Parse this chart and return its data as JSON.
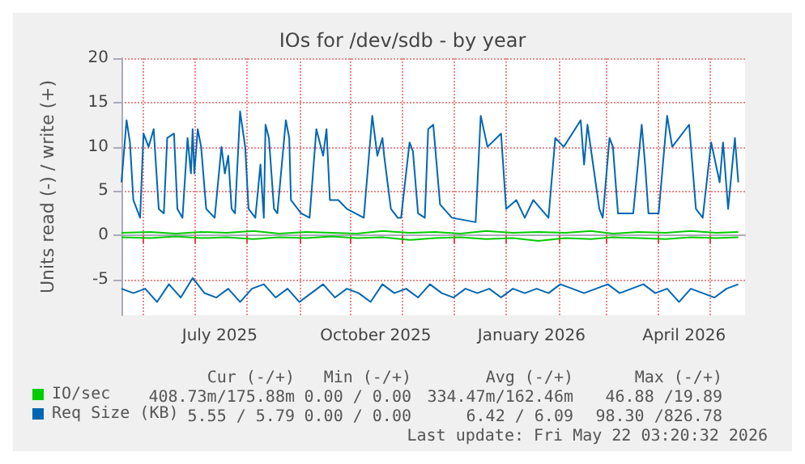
{
  "chart_data": {
    "type": "line",
    "title": "IOs for /dev/sdb - by year",
    "ylabel": "Units read (-) / write (+)",
    "xlim": [
      "2025-05-19",
      "2026-05-22"
    ],
    "xticks": [
      {
        "value": "2025-06-01",
        "label": null
      },
      {
        "value": "2025-07-01",
        "label": null
      },
      {
        "value": "2025-07-16",
        "label": "July 2025"
      },
      {
        "value": "2025-08-01",
        "label": null
      },
      {
        "value": "2025-09-01",
        "label": null
      },
      {
        "value": "2025-10-01",
        "label": null
      },
      {
        "value": "2025-10-16",
        "label": "October 2025"
      },
      {
        "value": "2025-11-01",
        "label": null
      },
      {
        "value": "2025-12-01",
        "label": null
      },
      {
        "value": "2026-01-01",
        "label": null
      },
      {
        "value": "2026-01-16",
        "label": "January 2026"
      },
      {
        "value": "2026-02-01",
        "label": null
      },
      {
        "value": "2026-03-01",
        "label": null
      },
      {
        "value": "2026-04-01",
        "label": null
      },
      {
        "value": "2026-04-16",
        "label": "April 2026"
      },
      {
        "value": "2026-05-01",
        "label": null
      }
    ],
    "ylim": [
      -9,
      20
    ],
    "yticks": [
      -5,
      0,
      5,
      10,
      15,
      20
    ],
    "grid": true,
    "legend": "bottom left",
    "marker": "none",
    "line_style": "solid",
    "series": [
      {
        "name": "IO/sec",
        "color": "#00cc00",
        "x": [
          "2025-05-19",
          "2025-06-05",
          "2025-06-20",
          "2025-07-05",
          "2025-07-20",
          "2025-08-05",
          "2025-08-20",
          "2025-09-05",
          "2025-09-20",
          "2025-10-05",
          "2025-10-20",
          "2025-11-05",
          "2025-11-20",
          "2025-12-05",
          "2025-12-20",
          "2026-01-05",
          "2026-01-20",
          "2026-02-05",
          "2026-02-20",
          "2026-03-05",
          "2026-03-20",
          "2026-04-05",
          "2026-04-20",
          "2026-05-05",
          "2026-05-18"
        ],
        "values": [
          0.3,
          0.4,
          0.2,
          0.4,
          0.3,
          0.5,
          0.2,
          0.4,
          0.3,
          0.2,
          0.5,
          0.3,
          0.4,
          0.2,
          0.5,
          0.3,
          0.4,
          0.3,
          0.5,
          0.2,
          0.4,
          0.3,
          0.5,
          0.3,
          0.4
        ]
      },
      {
        "color": "#00cc00",
        "x": [
          "2025-05-19",
          "2025-06-05",
          "2025-06-20",
          "2025-07-05",
          "2025-07-20",
          "2025-08-05",
          "2025-08-20",
          "2025-09-05",
          "2025-09-20",
          "2025-10-05",
          "2025-10-20",
          "2025-11-05",
          "2025-11-20",
          "2025-12-05",
          "2025-12-20",
          "2026-01-05",
          "2026-01-20",
          "2026-02-05",
          "2026-02-20",
          "2026-03-05",
          "2026-03-20",
          "2026-04-05",
          "2026-04-20",
          "2026-05-05",
          "2026-05-18"
        ],
        "values": [
          -0.2,
          -0.3,
          -0.1,
          -0.3,
          -0.2,
          -0.4,
          -0.2,
          -0.3,
          -0.1,
          -0.3,
          -0.2,
          -0.5,
          -0.3,
          -0.2,
          -0.4,
          -0.3,
          -0.6,
          -0.3,
          -0.4,
          -0.2,
          -0.3,
          -0.4,
          -0.2,
          -0.3,
          -0.2
        ]
      },
      {
        "name": "Req Size (KB)",
        "color": "#0066b3",
        "x": [
          "2025-05-19",
          "2025-05-22",
          "2025-05-24",
          "2025-05-26",
          "2025-05-30",
          "2025-06-01",
          "2025-06-04",
          "2025-06-07",
          "2025-06-10",
          "2025-06-13",
          "2025-06-15",
          "2025-06-19",
          "2025-06-21",
          "2025-06-24",
          "2025-06-27",
          "2025-06-29",
          "2025-06-30",
          "2025-07-01",
          "2025-07-03",
          "2025-07-05",
          "2025-07-08",
          "2025-07-13",
          "2025-07-17",
          "2025-07-19",
          "2025-07-21",
          "2025-07-23",
          "2025-07-25",
          "2025-07-28",
          "2025-07-31",
          "2025-08-02",
          "2025-08-06",
          "2025-08-09",
          "2025-08-11",
          "2025-08-12",
          "2025-08-14",
          "2025-08-17",
          "2025-08-19",
          "2025-08-24",
          "2025-08-26",
          "2025-08-27",
          "2025-09-02",
          "2025-09-07",
          "2025-09-11",
          "2025-09-15",
          "2025-09-17",
          "2025-09-19",
          "2025-09-24",
          "2025-09-29",
          "2025-10-09",
          "2025-10-14",
          "2025-10-17",
          "2025-10-20",
          "2025-10-21",
          "2025-10-25",
          "2025-10-29",
          "2025-10-31",
          "2025-11-05",
          "2025-11-07",
          "2025-11-10",
          "2025-11-14",
          "2025-11-16",
          "2025-11-19",
          "2025-11-23",
          "2025-11-30",
          "2025-12-14",
          "2025-12-17",
          "2025-12-21",
          "2025-12-29",
          "2026-01-01",
          "2026-01-07",
          "2026-01-12",
          "2026-01-17",
          "2026-01-26",
          "2026-01-30",
          "2026-02-04",
          "2026-02-14",
          "2026-02-16",
          "2026-02-18",
          "2026-02-25",
          "2026-02-27",
          "2026-03-03",
          "2026-03-05",
          "2026-03-08",
          "2026-03-17",
          "2026-03-22",
          "2026-03-24",
          "2026-03-26",
          "2026-04-01",
          "2026-04-06",
          "2026-04-09",
          "2026-04-19",
          "2026-04-23",
          "2026-04-27",
          "2026-05-02",
          "2026-05-07",
          "2026-05-09",
          "2026-05-12",
          "2026-05-16",
          "2026-05-18"
        ],
        "values": [
          6,
          13,
          10.5,
          4,
          2,
          11.5,
          10,
          12,
          3,
          2.5,
          11,
          11.5,
          3,
          2,
          11,
          7,
          12,
          7,
          12,
          10,
          3,
          2,
          10,
          7,
          9,
          3,
          2.5,
          14,
          10,
          3,
          2,
          8,
          2,
          12.5,
          11,
          3,
          2.5,
          13,
          11,
          4,
          2.5,
          2,
          12,
          9,
          12,
          4,
          4,
          3,
          2,
          13.5,
          9,
          11,
          9,
          3,
          2,
          2,
          10.5,
          9.5,
          2.5,
          2,
          12,
          12.5,
          3.5,
          2,
          1.5,
          13.5,
          10,
          11.5,
          3,
          4,
          2,
          4,
          2,
          11,
          10,
          13,
          8,
          12.5,
          3,
          2,
          11,
          10,
          2.5,
          2.5,
          12.5,
          8,
          2.5,
          2.5,
          13.5,
          10,
          12.5,
          3,
          2,
          10.5,
          6,
          10.5,
          3,
          11,
          6
        ]
      },
      {
        "color": "#0066b3",
        "x": [
          "2025-05-19",
          "2025-05-26",
          "2025-06-02",
          "2025-06-09",
          "2025-06-16",
          "2025-06-23",
          "2025-06-30",
          "2025-07-07",
          "2025-07-14",
          "2025-07-21",
          "2025-07-28",
          "2025-08-04",
          "2025-08-11",
          "2025-08-18",
          "2025-08-25",
          "2025-09-01",
          "2025-09-08",
          "2025-09-15",
          "2025-09-22",
          "2025-09-29",
          "2025-10-06",
          "2025-10-13",
          "2025-10-20",
          "2025-10-27",
          "2025-11-03",
          "2025-11-10",
          "2025-11-17",
          "2025-11-24",
          "2025-12-01",
          "2025-12-08",
          "2025-12-15",
          "2025-12-22",
          "2025-12-29",
          "2026-01-05",
          "2026-01-12",
          "2026-01-19",
          "2026-01-26",
          "2026-02-02",
          "2026-02-09",
          "2026-02-16",
          "2026-02-23",
          "2026-03-02",
          "2026-03-09",
          "2026-03-16",
          "2026-03-23",
          "2026-03-30",
          "2026-04-06",
          "2026-04-13",
          "2026-04-20",
          "2026-04-27",
          "2026-05-04",
          "2026-05-11",
          "2026-05-18"
        ],
        "values": [
          -6,
          -6.5,
          -6,
          -7.5,
          -5.5,
          -7,
          -4.8,
          -6.5,
          -7,
          -6,
          -7.5,
          -6,
          -5.5,
          -7,
          -6,
          -7.5,
          -6.5,
          -5.5,
          -7,
          -6,
          -6.5,
          -7.5,
          -5.5,
          -6.5,
          -6,
          -7,
          -5.5,
          -6.5,
          -7,
          -6,
          -6.5,
          -6,
          -7,
          -6,
          -6.5,
          -6,
          -6.5,
          -5.5,
          -6,
          -6.5,
          -6,
          -5.5,
          -6.5,
          -6,
          -5.5,
          -6.5,
          -6,
          -7.5,
          -6,
          -6.5,
          -7,
          -6,
          -5.5
        ]
      }
    ],
    "annotations": [
      "Cur (-/+)",
      "Min (-/+)",
      "Avg (-/+)",
      "Max (-/+)",
      "408.73m/175.88m",
      "0.00 / 0.00",
      "334.47m/162.46m",
      "46.88 /19.89",
      "5.55 / 5.79",
      "0.00 / 0.00",
      "6.42 / 6.09",
      "98.30 /826.78",
      "Last update: Fri May 22 03:20:32 2026"
    ]
  }
}
